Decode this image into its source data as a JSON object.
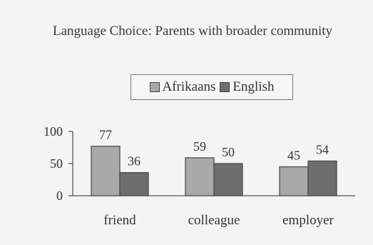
{
  "chart_data": {
    "type": "bar",
    "title": "Language Choice: Parents with broader community",
    "categories": [
      "friend",
      "colleague",
      "employer"
    ],
    "series": [
      {
        "name": "Afrikaans",
        "values": [
          77,
          59,
          45
        ],
        "color": "#a9a9a9"
      },
      {
        "name": "English",
        "values": [
          36,
          50,
          54
        ],
        "color": "#6e6e6e"
      }
    ],
    "yticks": [
      0,
      50,
      100
    ],
    "ylim": [
      0,
      100
    ],
    "legend_position": "top",
    "grid": false
  }
}
